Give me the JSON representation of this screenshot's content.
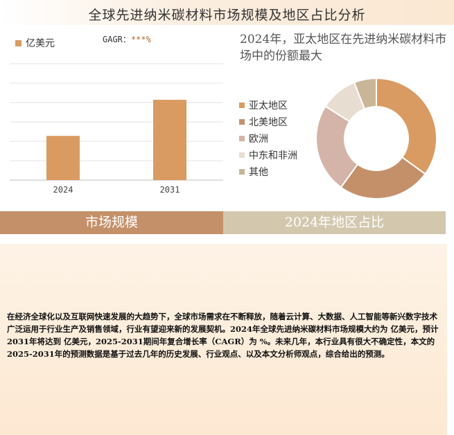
{
  "page": {
    "title": "全球先进纳米碳材料市场规模及地区占比分析"
  },
  "bar_section": {
    "legend_label": "亿美元",
    "cagr_label": "GAGR：",
    "cagr_value": "***%"
  },
  "pie_section": {
    "title": "2024年，亚太地区在先进纳米碳材料市场中的份额最大"
  },
  "bands": {
    "left": "市场规模",
    "right": "2024年地区占比"
  },
  "summary": {
    "text": "在经济全球化以及互联网快速发展的大趋势下，全球市场需求在不断释放，随着云计算、大数据、人工智能等新兴数字技术广泛运用于行业生产及销售领域，行业有望迎来新的发展契机。2024年全球先进纳米碳材料市场规模大约为 亿美元，预计2031年将达到 亿美元，2025-2031期间年复合增长率（CAGR）为 %。未来几年，本行业具有很大不确定性，本文的2025-2031年的预测数据是基于过去几年的历史发展、行业观点、以及本文分析师观点，综合给出的预测。"
  },
  "chart_data": [
    {
      "type": "bar",
      "categories": [
        "2024",
        "2031"
      ],
      "series": [
        {
          "name": "亿美元",
          "values": [
            38,
            69
          ],
          "color": "#d99b61"
        }
      ],
      "ylim": [
        0,
        100
      ],
      "grid": true,
      "legend": "top-left",
      "title": "",
      "xlabel": "",
      "ylabel": ""
    },
    {
      "type": "pie",
      "donut": true,
      "labels": [
        "亚太地区",
        "北美地区",
        "欧洲",
        "中东和非洲",
        "其他"
      ],
      "values": [
        35,
        25,
        24,
        10,
        6
      ],
      "colors": [
        "#d99b61",
        "#c4906a",
        "#d4b4a8",
        "#e7ddd0",
        "#c9b698"
      ],
      "legend": "left"
    }
  ]
}
